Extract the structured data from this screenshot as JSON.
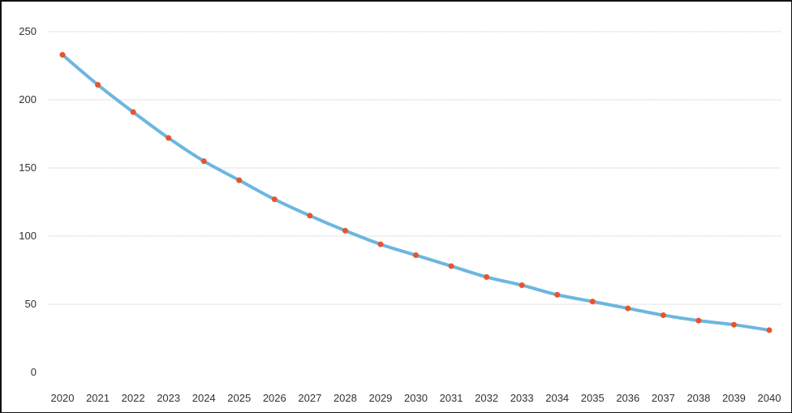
{
  "chart_data": {
    "type": "line",
    "title": "",
    "xlabel": "",
    "ylabel": "",
    "x": [
      "2020",
      "2021",
      "2022",
      "2023",
      "2024",
      "2025",
      "2026",
      "2027",
      "2028",
      "2029",
      "2030",
      "2031",
      "2032",
      "2033",
      "2034",
      "2035",
      "2036",
      "2037",
      "2038",
      "2039",
      "2040"
    ],
    "series": [
      {
        "values": [
          233,
          211,
          191,
          172,
          155,
          141,
          127,
          115,
          104,
          94,
          86,
          78,
          70,
          64,
          57,
          52,
          47,
          42,
          38,
          35,
          31
        ]
      }
    ],
    "ylim": [
      0,
      250
    ],
    "yticks": [
      "0",
      "50",
      "100",
      "150",
      "200",
      "250"
    ],
    "grid": true,
    "legend": "none",
    "colors": {
      "line": "#6cb6e0",
      "marker": "#e8542c",
      "grid": "#d4d4d4"
    }
  }
}
